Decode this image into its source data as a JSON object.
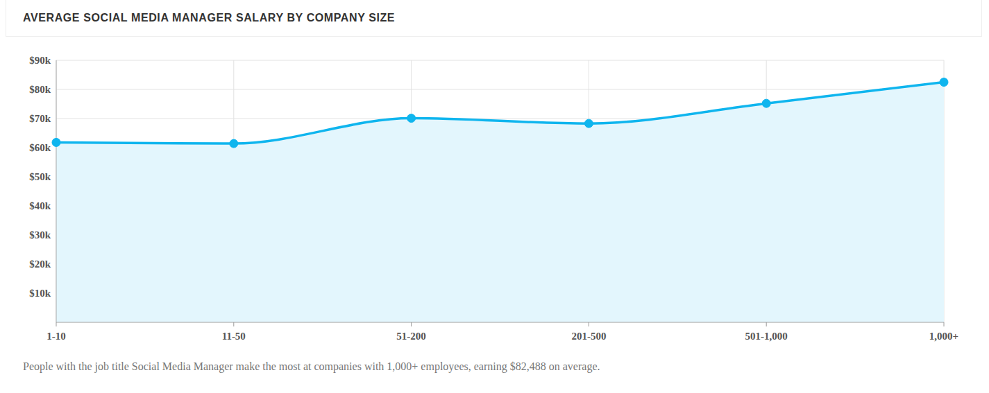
{
  "chart_data": {
    "type": "area",
    "title": "AVERAGE SOCIAL MEDIA MANAGER SALARY BY COMPANY SIZE",
    "categories": [
      "1-10",
      "11-50",
      "51-200",
      "201-500",
      "501-1,000",
      "1,000+"
    ],
    "values": [
      61800,
      61400,
      70100,
      68300,
      75200,
      82488
    ],
    "color": "#0fb5ee",
    "ylim": [
      0,
      90000
    ],
    "yticks": [
      {
        "value": 10000,
        "label": "$10k"
      },
      {
        "value": 20000,
        "label": "$20k"
      },
      {
        "value": 30000,
        "label": "$30k"
      },
      {
        "value": 40000,
        "label": "$40k"
      },
      {
        "value": 50000,
        "label": "$50k"
      },
      {
        "value": 60000,
        "label": "$60k"
      },
      {
        "value": 70000,
        "label": "$70k"
      },
      {
        "value": 80000,
        "label": "$80k"
      },
      {
        "value": 90000,
        "label": "$90k"
      }
    ],
    "grid": true,
    "marker": "circle",
    "annotation": "People with the job title Social Media Manager make the most at companies with 1,000+ employees, earning $82,488 on average."
  }
}
